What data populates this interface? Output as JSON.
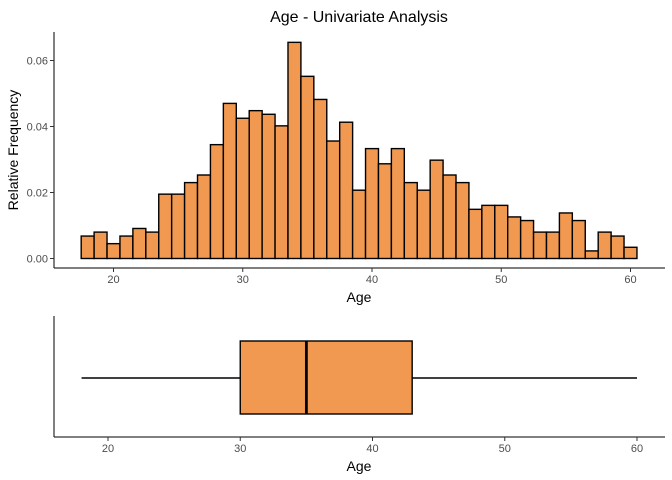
{
  "chart_data": [
    {
      "type": "histogram",
      "title": "Age - Univariate Analysis",
      "xlabel": "Age",
      "ylabel": "Relative Frequency",
      "xlim": [
        16.5,
        61.5
      ],
      "ylim": [
        0,
        0.069
      ],
      "xticks": [
        20,
        30,
        40,
        50,
        60
      ],
      "yticks": [
        0.0,
        0.02,
        0.04,
        0.06
      ],
      "ytick_labels": [
        "0.00",
        "0.02",
        "0.04",
        "0.06"
      ],
      "bin_width": 1,
      "x": [
        18,
        19,
        20,
        21,
        22,
        23,
        24,
        25,
        26,
        27,
        28,
        29,
        30,
        31,
        32,
        33,
        34,
        35,
        36,
        37,
        38,
        39,
        40,
        41,
        42,
        43,
        44,
        45,
        46,
        47,
        48,
        49,
        50,
        51,
        52,
        53,
        54,
        55,
        56,
        57,
        58,
        59,
        60
      ],
      "values": [
        0.0068,
        0.008,
        0.0045,
        0.0068,
        0.0091,
        0.008,
        0.0195,
        0.0195,
        0.023,
        0.0253,
        0.0345,
        0.047,
        0.0425,
        0.0448,
        0.0437,
        0.0402,
        0.0655,
        0.0552,
        0.0482,
        0.0356,
        0.0413,
        0.0207,
        0.0333,
        0.0287,
        0.0333,
        0.023,
        0.0207,
        0.0298,
        0.0253,
        0.023,
        0.0149,
        0.0161,
        0.0161,
        0.0126,
        0.0115,
        0.008,
        0.008,
        0.0138,
        0.0115,
        0.0023,
        0.008,
        0.0068,
        0.0034
      ],
      "fill": "#F19851",
      "stroke": "#000000",
      "grid": false
    },
    {
      "type": "boxplot",
      "xlabel": "Age",
      "xticks": [
        20,
        30,
        40,
        50,
        60
      ],
      "xlim": [
        14,
        62
      ],
      "min": 18,
      "q1": 30,
      "median": 35,
      "q3": 43,
      "max": 60,
      "fill": "#F19851",
      "stroke": "#000000",
      "grid": false
    }
  ]
}
